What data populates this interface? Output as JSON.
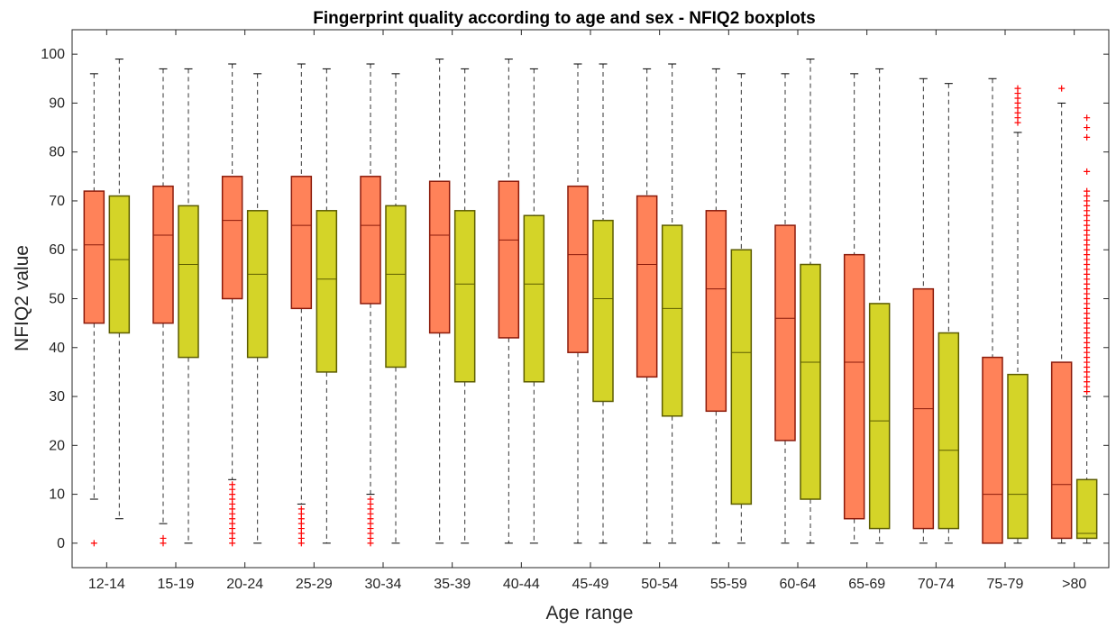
{
  "chart_data": {
    "type": "boxplot",
    "title": "Fingerprint quality according to age and sex - NFIQ2 boxplots",
    "xlabel": "Age range",
    "ylabel": "NFIQ2 value",
    "ylim": [
      -5,
      105
    ],
    "yticks": [
      0,
      10,
      20,
      30,
      40,
      50,
      60,
      70,
      80,
      90,
      100
    ],
    "categories": [
      "12-14",
      "15-19",
      "20-24",
      "25-29",
      "30-34",
      "35-39",
      "40-44",
      "45-49",
      "50-54",
      "55-59",
      "60-64",
      "65-69",
      "70-74",
      "75-79",
      ">80"
    ],
    "grid": false,
    "legend": "none",
    "colors": {
      "series_a_fill": "#ff8259",
      "series_a_edge": "#8b1a0a",
      "series_b_fill": "#d4d428",
      "series_b_edge": "#5c5c00",
      "whisker": "#333333",
      "outlier": "#ff0000",
      "axis": "#262626"
    },
    "series": [
      {
        "boxes": [
          {
            "q1": 45,
            "median": 61,
            "q3": 72,
            "wlo": 9,
            "whi": 96,
            "outliers": [
              0
            ]
          },
          {
            "q1": 45,
            "median": 63,
            "q3": 73,
            "wlo": 4,
            "whi": 97,
            "outliers": [
              0,
              1
            ]
          },
          {
            "q1": 50,
            "median": 66,
            "q3": 75,
            "wlo": 13,
            "whi": 98,
            "outliers": [
              0,
              1,
              2,
              3,
              4,
              5,
              6,
              7,
              8,
              9,
              10,
              11,
              12
            ]
          },
          {
            "q1": 48,
            "median": 65,
            "q3": 75,
            "wlo": 8,
            "whi": 98,
            "outliers": [
              0,
              1,
              2,
              3,
              4,
              5,
              6,
              7
            ]
          },
          {
            "q1": 49,
            "median": 65,
            "q3": 75,
            "wlo": 10,
            "whi": 98,
            "outliers": [
              0,
              1,
              2,
              3,
              4,
              5,
              6,
              7,
              8,
              9
            ]
          },
          {
            "q1": 43,
            "median": 63,
            "q3": 74,
            "wlo": 0,
            "whi": 99,
            "outliers": []
          },
          {
            "q1": 42,
            "median": 62,
            "q3": 74,
            "wlo": 0,
            "whi": 99,
            "outliers": []
          },
          {
            "q1": 39,
            "median": 59,
            "q3": 73,
            "wlo": 0,
            "whi": 98,
            "outliers": []
          },
          {
            "q1": 34,
            "median": 57,
            "q3": 71,
            "wlo": 0,
            "whi": 97,
            "outliers": []
          },
          {
            "q1": 27,
            "median": 52,
            "q3": 68,
            "wlo": 0,
            "whi": 97,
            "outliers": []
          },
          {
            "q1": 21,
            "median": 46,
            "q3": 65,
            "wlo": 0,
            "whi": 96,
            "outliers": []
          },
          {
            "q1": 5,
            "median": 37,
            "q3": 59,
            "wlo": 0,
            "whi": 96,
            "outliers": []
          },
          {
            "q1": 3,
            "median": 27.5,
            "q3": 52,
            "wlo": 0,
            "whi": 95,
            "outliers": []
          },
          {
            "q1": 0,
            "median": 10,
            "q3": 38,
            "wlo": 0,
            "whi": 95,
            "outliers": []
          },
          {
            "q1": 1,
            "median": 12,
            "q3": 37,
            "wlo": 0,
            "whi": 90,
            "outliers": [
              93
            ]
          }
        ]
      },
      {
        "boxes": [
          {
            "q1": 43,
            "median": 58,
            "q3": 71,
            "wlo": 5,
            "whi": 99,
            "outliers": []
          },
          {
            "q1": 38,
            "median": 57,
            "q3": 69,
            "wlo": 0,
            "whi": 97,
            "outliers": []
          },
          {
            "q1": 38,
            "median": 55,
            "q3": 68,
            "wlo": 0,
            "whi": 96,
            "outliers": []
          },
          {
            "q1": 35,
            "median": 54,
            "q3": 68,
            "wlo": 0,
            "whi": 97,
            "outliers": []
          },
          {
            "q1": 36,
            "median": 55,
            "q3": 69,
            "wlo": 0,
            "whi": 96,
            "outliers": []
          },
          {
            "q1": 33,
            "median": 53,
            "q3": 68,
            "wlo": 0,
            "whi": 97,
            "outliers": []
          },
          {
            "q1": 33,
            "median": 53,
            "q3": 67,
            "wlo": 0,
            "whi": 97,
            "outliers": []
          },
          {
            "q1": 29,
            "median": 50,
            "q3": 66,
            "wlo": 0,
            "whi": 98,
            "outliers": []
          },
          {
            "q1": 26,
            "median": 48,
            "q3": 65,
            "wlo": 0,
            "whi": 98,
            "outliers": []
          },
          {
            "q1": 8,
            "median": 39,
            "q3": 60,
            "wlo": 0,
            "whi": 96,
            "outliers": []
          },
          {
            "q1": 9,
            "median": 37,
            "q3": 57,
            "wlo": 0,
            "whi": 99,
            "outliers": []
          },
          {
            "q1": 3,
            "median": 25,
            "q3": 49,
            "wlo": 0,
            "whi": 97,
            "outliers": []
          },
          {
            "q1": 3,
            "median": 19,
            "q3": 43,
            "wlo": 0,
            "whi": 94,
            "outliers": []
          },
          {
            "q1": 1,
            "median": 10,
            "q3": 34.5,
            "wlo": 0,
            "whi": 84,
            "outliers": [
              86,
              87,
              88,
              89,
              90,
              91,
              92,
              93
            ]
          },
          {
            "q1": 1,
            "median": 2,
            "q3": 13,
            "wlo": 0,
            "whi": 30,
            "outliers": [
              31,
              32,
              33,
              34,
              35,
              36,
              37,
              38,
              39,
              40,
              41,
              42,
              43,
              44,
              45,
              46,
              47,
              48,
              49,
              50,
              51,
              52,
              53,
              54,
              55,
              56,
              57,
              58,
              59,
              60,
              61,
              62,
              63,
              64,
              65,
              66,
              67,
              68,
              69,
              70,
              71,
              72,
              76,
              83,
              85,
              87
            ]
          }
        ]
      }
    ]
  }
}
